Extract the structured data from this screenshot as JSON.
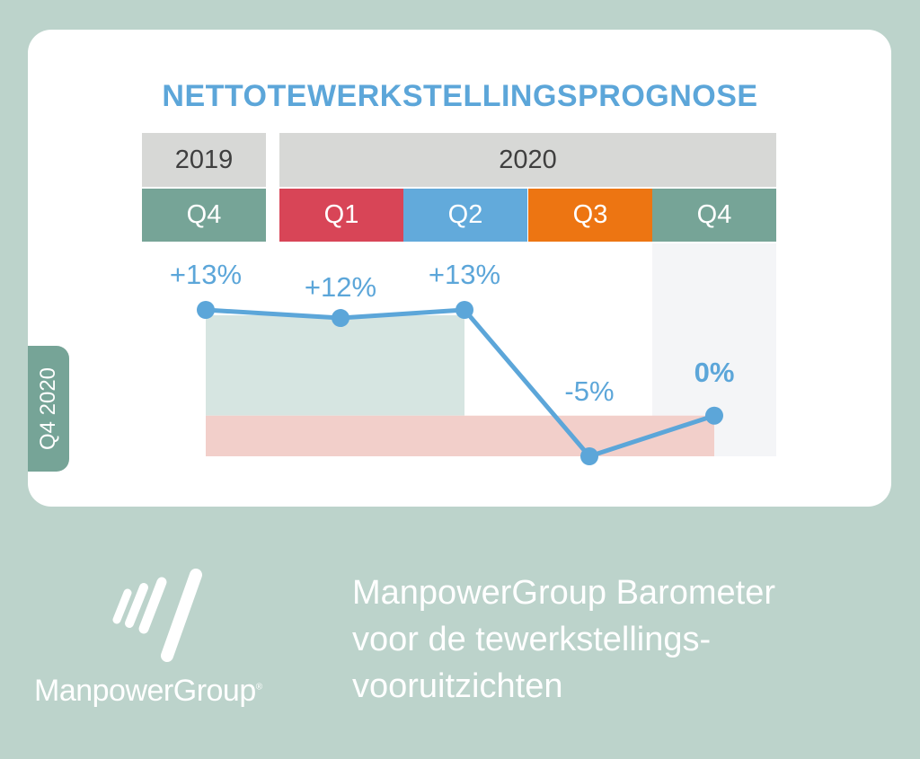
{
  "chart_data": {
    "type": "line",
    "title": "NETTOTEWERKSTELLINGSPROGNOSE",
    "years": [
      {
        "label": "2019"
      },
      {
        "label": "2020"
      }
    ],
    "categories": [
      "Q4",
      "Q1",
      "Q2",
      "Q3",
      "Q4"
    ],
    "category_colors": [
      "#76a497",
      "#d84557",
      "#62aadb",
      "#ed7512",
      "#76a497"
    ],
    "series": [
      {
        "values": [
          13,
          12,
          13,
          -5,
          0
        ],
        "color": "#5ca6d9"
      }
    ],
    "data_labels": [
      "+13%",
      "+12%",
      "+13%",
      "-5%",
      "0%"
    ],
    "highlighted_point": 4,
    "ylim": [
      -5,
      13
    ]
  },
  "side_tab": {
    "label": "Q4 2020"
  },
  "brand": {
    "name": "ManpowerGroup",
    "mark": "®"
  },
  "tagline_lines": [
    "ManpowerGroup Barometer",
    "voor de tewerkstellings-",
    "vooruitzichten"
  ]
}
